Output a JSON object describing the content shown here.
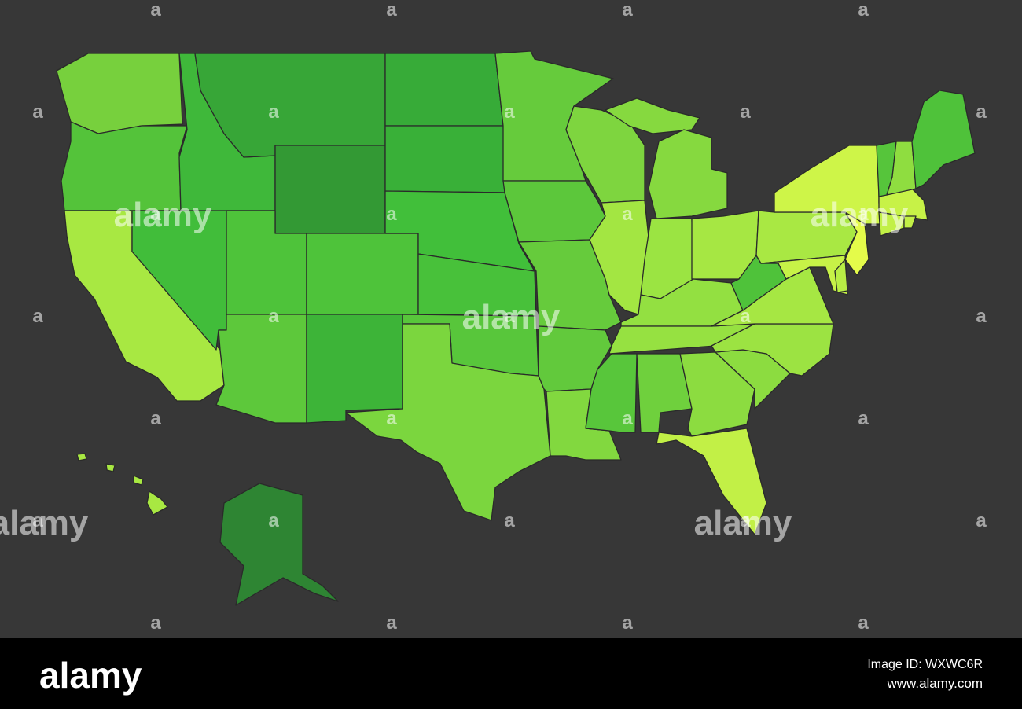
{
  "watermark": {
    "text": "alamy",
    "mark": "a"
  },
  "footer": {
    "logo": "alamy",
    "image_id": "Image ID: WXWC6R",
    "url": "www.alamy.com"
  }
}
